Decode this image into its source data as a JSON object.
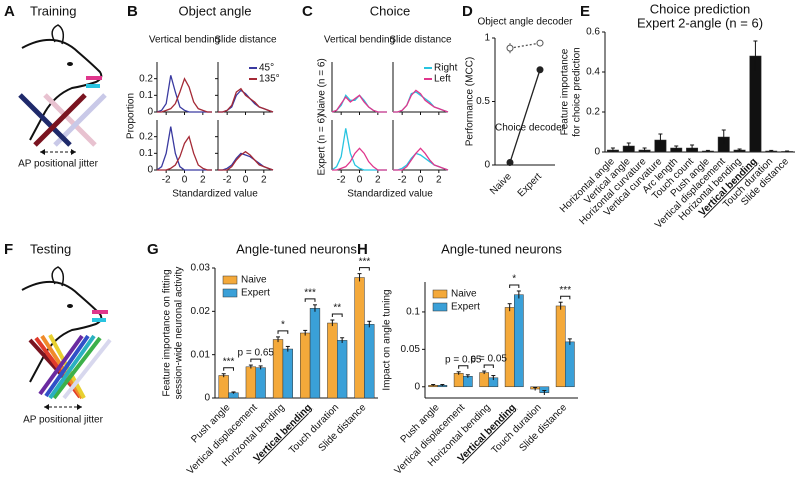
{
  "diagrams": [
    {
      "label": "A",
      "title": "Training",
      "caption": "AP positional jitter"
    },
    {
      "label": "F",
      "title": "Testing",
      "caption": "AP positional jitter"
    }
  ],
  "chart_data": [
    {
      "type": "distribution",
      "panel": "B",
      "title": "Object angle",
      "column_titles": [
        "Vertical bending",
        "Slide distance"
      ],
      "ylabel": "Proportion",
      "xlabel": "Standardized value",
      "x": [
        -3,
        -2.5,
        -2,
        -1.5,
        -1,
        -0.5,
        0,
        0.5,
        1,
        1.5,
        2,
        2.5,
        3
      ],
      "xlim": [
        -3,
        3
      ],
      "xticks": [
        -2,
        0,
        2
      ],
      "ylim": [
        0,
        0.3
      ],
      "yticks": [
        0,
        0.1,
        0.2
      ],
      "series": [
        {
          "name": "45°",
          "color": "#3a3aa0"
        },
        {
          "name": "135°",
          "color": "#a52a36"
        }
      ],
      "panels": [
        {
          "values": [
            [
              0,
              0.01,
              0.05,
              0.22,
              0.12,
              0.03,
              0.01,
              0,
              0,
              0,
              0,
              0,
              0
            ],
            [
              0,
              0,
              0.01,
              0.02,
              0.05,
              0.12,
              0.2,
              0.15,
              0.06,
              0.02,
              0.01,
              0,
              0
            ]
          ]
        },
        {
          "values": [
            [
              0,
              0,
              0.01,
              0.03,
              0.1,
              0.13,
              0.11,
              0.08,
              0.05,
              0.03,
              0.02,
              0.01,
              0
            ],
            [
              0,
              0,
              0.01,
              0.04,
              0.12,
              0.14,
              0.1,
              0.08,
              0.06,
              0.03,
              0.02,
              0.01,
              0
            ]
          ]
        },
        {
          "values": [
            [
              0,
              0.02,
              0.1,
              0.26,
              0.1,
              0.02,
              0,
              0,
              0,
              0,
              0,
              0,
              0
            ],
            [
              0,
              0,
              0,
              0.01,
              0.03,
              0.08,
              0.16,
              0.2,
              0.1,
              0.03,
              0.01,
              0,
              0
            ]
          ]
        },
        {
          "values": [
            [
              0,
              0,
              0.01,
              0.03,
              0.07,
              0.1,
              0.09,
              0.08,
              0.06,
              0.04,
              0.02,
              0.01,
              0
            ],
            [
              0,
              0,
              0,
              0.02,
              0.06,
              0.09,
              0.11,
              0.09,
              0.06,
              0.03,
              0.02,
              0.01,
              0
            ]
          ]
        }
      ]
    },
    {
      "type": "distribution",
      "panel": "C",
      "title": "Choice",
      "column_titles": [
        "Vertical bending",
        "Slide distance"
      ],
      "row_titles": [
        "Naive (n = 6)",
        "Expert (n = 6)"
      ],
      "xlabel": "Standardized value",
      "x": [
        -3,
        -2.5,
        -2,
        -1.5,
        -1,
        -0.5,
        0,
        0.5,
        1,
        1.5,
        2,
        2.5,
        3
      ],
      "xlim": [
        -3,
        3
      ],
      "xticks": [
        -2,
        0,
        2
      ],
      "ylim": [
        0,
        0.3
      ],
      "series": [
        {
          "name": "Right",
          "color": "#28c4e0"
        },
        {
          "name": "Left",
          "color": "#e0368c"
        }
      ],
      "panels": [
        {
          "values": [
            [
              0,
              0.01,
              0.04,
              0.1,
              0.07,
              0.07,
              0.1,
              0.07,
              0.03,
              0.01,
              0,
              0,
              0
            ],
            [
              0,
              0.01,
              0.05,
              0.09,
              0.06,
              0.08,
              0.1,
              0.06,
              0.03,
              0.01,
              0,
              0,
              0
            ]
          ]
        },
        {
          "values": [
            [
              0,
              0,
              0.01,
              0.04,
              0.11,
              0.12,
              0.1,
              0.08,
              0.06,
              0.03,
              0.02,
              0.01,
              0
            ],
            [
              0,
              0,
              0.01,
              0.04,
              0.1,
              0.13,
              0.11,
              0.07,
              0.05,
              0.03,
              0.02,
              0.01,
              0
            ]
          ]
        },
        {
          "values": [
            [
              0,
              0.02,
              0.08,
              0.25,
              0.1,
              0.03,
              0.01,
              0,
              0,
              0,
              0,
              0,
              0
            ],
            [
              0,
              0,
              0.01,
              0.02,
              0.05,
              0.1,
              0.13,
              0.1,
              0.05,
              0.02,
              0,
              0,
              0
            ]
          ]
        },
        {
          "values": [
            [
              0,
              0,
              0.01,
              0.03,
              0.07,
              0.1,
              0.09,
              0.07,
              0.05,
              0.03,
              0.02,
              0.01,
              0
            ],
            [
              0,
              0,
              0,
              0.02,
              0.06,
              0.1,
              0.13,
              0.1,
              0.06,
              0.03,
              0.02,
              0.01,
              0
            ]
          ]
        }
      ]
    },
    {
      "type": "line",
      "panel": "D",
      "categories": [
        "Naive",
        "Expert"
      ],
      "ylabel": "Performance (MCC)",
      "ylim": [
        0,
        1
      ],
      "yticks": [
        0,
        0.5,
        1
      ],
      "series": [
        {
          "name": "Object angle decoder",
          "color": "#555555",
          "dashed": true,
          "open": true,
          "values": [
            0.92,
            0.96
          ],
          "errors": [
            0.04,
            0.01
          ]
        },
        {
          "name": "Choice decoder",
          "color": "#222222",
          "values": [
            0.02,
            0.75
          ],
          "errors": [
            0.01,
            0.02
          ]
        }
      ]
    },
    {
      "type": "bar",
      "panel": "E",
      "title": "Choice prediction",
      "subtitle": "Expert 2-angle (n = 6)",
      "ylabel": [
        "Feature importance",
        "for choice prediction"
      ],
      "categories": [
        "Horizontal angle",
        "Vertical angle",
        "Horizontal curvature",
        "Vertical curvature",
        "Arc length",
        "Touch count",
        "Push angle",
        "Vertical displacement",
        "Horizontal bending",
        "Vertical bending",
        "Touch duration",
        "Slide distance"
      ],
      "highlight_index": 9,
      "color": "#111111",
      "values": [
        0.01,
        0.03,
        0.01,
        0.06,
        0.02,
        0.02,
        0.005,
        0.075,
        0.01,
        0.48,
        0.005,
        0.003
      ],
      "errors": [
        0.01,
        0.015,
        0.01,
        0.03,
        0.01,
        0.015,
        0.003,
        0.035,
        0.005,
        0.075,
        0.003,
        0.002
      ],
      "ylim": [
        0,
        0.6
      ],
      "yticks": [
        0,
        0.2,
        0.4,
        0.6
      ]
    },
    {
      "type": "bar",
      "panel": "G",
      "title": "Angle-tuned neurons",
      "ylabel": [
        "Feature importance on fitting",
        "session-wide neuronal activity"
      ],
      "categories": [
        "Push angle",
        "Vertical displacement",
        "Horizontal bending",
        "Vertical bending",
        "Touch duration",
        "Slide distance"
      ],
      "highlight_index": 3,
      "legend": "upper left",
      "series": [
        {
          "name": "Naive",
          "color": "#f4a93a",
          "values": [
            0.0052,
            0.0072,
            0.0135,
            0.015,
            0.0173,
            0.0278
          ],
          "errors": [
            0.0004,
            0.0004,
            0.0006,
            0.0006,
            0.0007,
            0.0009
          ]
        },
        {
          "name": "Expert",
          "color": "#3aa0d8",
          "values": [
            0.0012,
            0.007,
            0.0113,
            0.0207,
            0.0133,
            0.017
          ],
          "errors": [
            0.0002,
            0.0004,
            0.0006,
            0.0008,
            0.0006,
            0.0007
          ]
        }
      ],
      "ylim": [
        0,
        0.03
      ],
      "yticks": [
        0,
        0.01,
        0.02,
        0.03
      ],
      "annotations": [
        {
          "text": "***",
          "category": 0
        },
        {
          "text": "p = 0.65",
          "category": 1
        },
        {
          "text": "*",
          "category": 2
        },
        {
          "text": "***",
          "category": 3
        },
        {
          "text": "**",
          "category": 4
        },
        {
          "text": "***",
          "category": 5
        }
      ]
    },
    {
      "type": "bar",
      "panel": "H",
      "title": "Angle-tuned neurons",
      "ylabel": "Impact on angle tuning",
      "categories": [
        "Push angle",
        "Vertical displacement",
        "Horizontal bending",
        "Vertical bending",
        "Touch duration",
        "Slide distance"
      ],
      "highlight_index": 3,
      "legend": "upper left",
      "series": [
        {
          "name": "Naive",
          "color": "#f4a93a",
          "values": [
            0.002,
            0.018,
            0.019,
            0.106,
            -0.003,
            0.108
          ],
          "errors": [
            0.001,
            0.002,
            0.002,
            0.005,
            0.002,
            0.005
          ]
        },
        {
          "name": "Expert",
          "color": "#3aa0d8",
          "values": [
            0.002,
            0.014,
            0.012,
            0.123,
            -0.008,
            0.06
          ],
          "errors": [
            0.001,
            0.002,
            0.003,
            0.005,
            0.003,
            0.004
          ]
        }
      ],
      "ylim": [
        -0.015,
        0.14
      ],
      "yticks": [
        0,
        0.05,
        0.1
      ],
      "annotations": [
        {
          "text": "p = 0.65",
          "category": 1
        },
        {
          "text": "p = 0.05",
          "category": 2
        },
        {
          "text": "*",
          "category": 3
        },
        {
          "text": "***",
          "category": 5
        }
      ]
    }
  ]
}
